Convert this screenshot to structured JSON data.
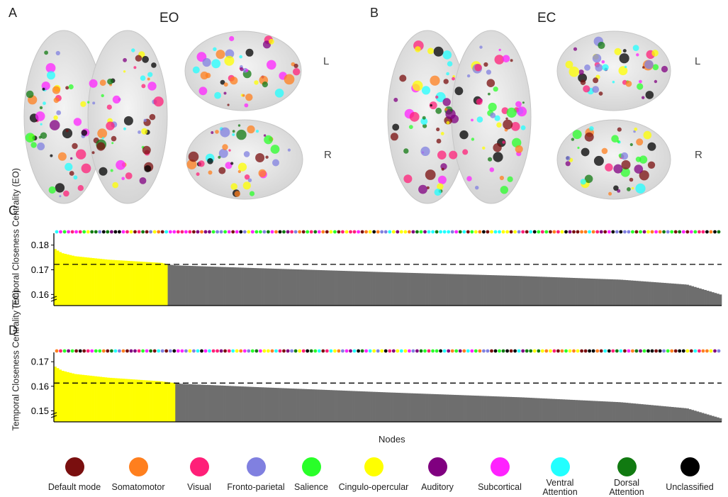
{
  "panels": {
    "a": {
      "letter": "A",
      "condition": "EO",
      "left_label": "L",
      "right_label": "R"
    },
    "b": {
      "letter": "B",
      "condition": "EC",
      "left_label": "L",
      "right_label": "R"
    },
    "c": {
      "letter": "C"
    },
    "d": {
      "letter": "D"
    }
  },
  "colors": {
    "Default mode": "#7a0f0f",
    "Somatomotor": "#ff7f1e",
    "Visual": "#ff1f78",
    "Fronto-parietal": "#8080e0",
    "Salience": "#29ff29",
    "Cingulo-opercular": "#ffff00",
    "Auditory": "#800080",
    "Subcortical": "#ff22ff",
    "Ventral Attention": "#22ffff",
    "Dorsal Attention": "#117a11",
    "Unclassified": "#000000",
    "top_fill": "#ffff00",
    "rest_fill": "#6e6e6e"
  },
  "legend": [
    {
      "label": "Default mode",
      "color": "#7a0f0f"
    },
    {
      "label": "Somatomotor",
      "color": "#ff7f1e"
    },
    {
      "label": "Visual",
      "color": "#ff1f78"
    },
    {
      "label": "Fronto-parietal",
      "color": "#8080e0"
    },
    {
      "label": "Salience",
      "color": "#29ff29"
    },
    {
      "label": "Cingulo-opercular",
      "color": "#ffff00"
    },
    {
      "label": "Auditory",
      "color": "#800080"
    },
    {
      "label": "Subcortical",
      "color": "#ff22ff"
    },
    {
      "label": "Ventral Attention",
      "color": "#22ffff"
    },
    {
      "label": "Dorsal Attention",
      "color": "#117a11"
    },
    {
      "label": "Unclassified",
      "color": "#000000"
    }
  ],
  "xlabel": "Nodes",
  "chart_data": [
    {
      "type": "bar",
      "panel": "C",
      "ylabel": "Temporal Closeness Centrality (EO)",
      "ylim": [
        0.1555,
        0.1825
      ],
      "yticks": [
        0.16,
        0.17,
        0.18
      ],
      "ytick_labels": [
        "0.16",
        "0.17",
        "0.18"
      ],
      "threshold": 0.1722,
      "n_nodes": 264,
      "profile_rank_fraction": [
        0,
        0.01,
        0.03,
        0.08,
        0.16,
        0.17,
        0.18,
        0.3,
        0.5,
        0.7,
        0.85,
        0.95,
        1.0
      ],
      "profile_values": [
        0.1784,
        0.1768,
        0.1755,
        0.1741,
        0.1728,
        0.1722,
        0.1718,
        0.1707,
        0.169,
        0.1675,
        0.166,
        0.164,
        0.16
      ]
    },
    {
      "type": "bar",
      "panel": "D",
      "ylabel": "Temporal Closeness Centrality (EC)",
      "ylim": [
        0.1455,
        0.1715
      ],
      "yticks": [
        0.15,
        0.16,
        0.17
      ],
      "ytick_labels": [
        "0.15",
        "0.16",
        "0.17"
      ],
      "threshold": 0.1613,
      "n_nodes": 264,
      "profile_rank_fraction": [
        0,
        0.01,
        0.03,
        0.08,
        0.16,
        0.18,
        0.19,
        0.3,
        0.5,
        0.7,
        0.85,
        0.95,
        1.0
      ],
      "profile_values": [
        0.168,
        0.1664,
        0.165,
        0.1635,
        0.162,
        0.1613,
        0.161,
        0.1597,
        0.1575,
        0.1555,
        0.1535,
        0.151,
        0.147
      ]
    }
  ]
}
